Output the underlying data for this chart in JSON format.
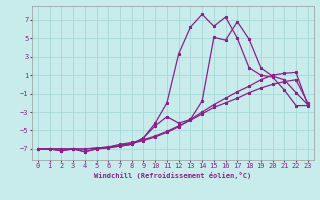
{
  "xlabel": "Windchill (Refroidissement éolien,°C)",
  "bg_color": "#c8ecec",
  "line_color": "#882288",
  "grid_color": "#a8d8d8",
  "xlim": [
    -0.5,
    23.5
  ],
  "ylim": [
    -8.2,
    8.5
  ],
  "yticks": [
    -7,
    -5,
    -3,
    -1,
    1,
    3,
    5,
    7
  ],
  "xticks": [
    0,
    1,
    2,
    3,
    4,
    5,
    6,
    7,
    8,
    9,
    10,
    11,
    12,
    13,
    14,
    15,
    16,
    17,
    18,
    19,
    20,
    21,
    22,
    23
  ],
  "line1_x": [
    0,
    1,
    2,
    3,
    4,
    5,
    6,
    7,
    8,
    9,
    10,
    11,
    12,
    13,
    14,
    15,
    16,
    17,
    18,
    19,
    20,
    21,
    22,
    23
  ],
  "line1_y": [
    -7.0,
    -7.0,
    -7.2,
    -7.0,
    -7.3,
    -7.0,
    -6.8,
    -6.7,
    -6.5,
    -5.8,
    -4.2,
    -2.0,
    3.3,
    6.2,
    7.6,
    6.3,
    7.3,
    5.0,
    1.8,
    1.0,
    0.8,
    -0.6,
    -2.3,
    -2.3
  ],
  "line2_x": [
    0,
    1,
    2,
    3,
    4,
    5,
    6,
    7,
    8,
    9,
    10,
    11,
    12,
    13,
    14,
    15,
    16,
    17,
    18,
    19,
    20,
    21,
    22,
    23
  ],
  "line2_y": [
    -7.0,
    -7.0,
    -7.2,
    -7.0,
    -7.3,
    -7.0,
    -6.9,
    -6.7,
    -6.5,
    -5.8,
    -4.5,
    -3.5,
    -4.2,
    -3.8,
    -1.8,
    5.1,
    4.8,
    6.8,
    4.9,
    1.8,
    0.9,
    0.5,
    -0.9,
    -2.2
  ],
  "line3_x": [
    0,
    1,
    2,
    3,
    4,
    5,
    6,
    7,
    8,
    9,
    10,
    11,
    12,
    13,
    14,
    15,
    16,
    17,
    18,
    19,
    20,
    21,
    22,
    23
  ],
  "line3_y": [
    -7.0,
    -7.0,
    -7.0,
    -7.0,
    -7.0,
    -6.9,
    -6.8,
    -6.6,
    -6.4,
    -6.1,
    -5.7,
    -5.2,
    -4.6,
    -3.8,
    -3.0,
    -2.2,
    -1.5,
    -0.8,
    -0.2,
    0.5,
    1.0,
    1.2,
    1.3,
    -2.2
  ],
  "line4_x": [
    0,
    1,
    2,
    3,
    4,
    5,
    6,
    7,
    8,
    9,
    10,
    11,
    12,
    13,
    14,
    15,
    16,
    17,
    18,
    19,
    20,
    21,
    22,
    23
  ],
  "line4_y": [
    -7.0,
    -7.0,
    -7.0,
    -7.0,
    -7.0,
    -6.9,
    -6.8,
    -6.5,
    -6.3,
    -6.0,
    -5.6,
    -5.1,
    -4.5,
    -3.9,
    -3.2,
    -2.5,
    -2.0,
    -1.5,
    -0.9,
    -0.4,
    0.0,
    0.3,
    0.5,
    -2.0
  ]
}
